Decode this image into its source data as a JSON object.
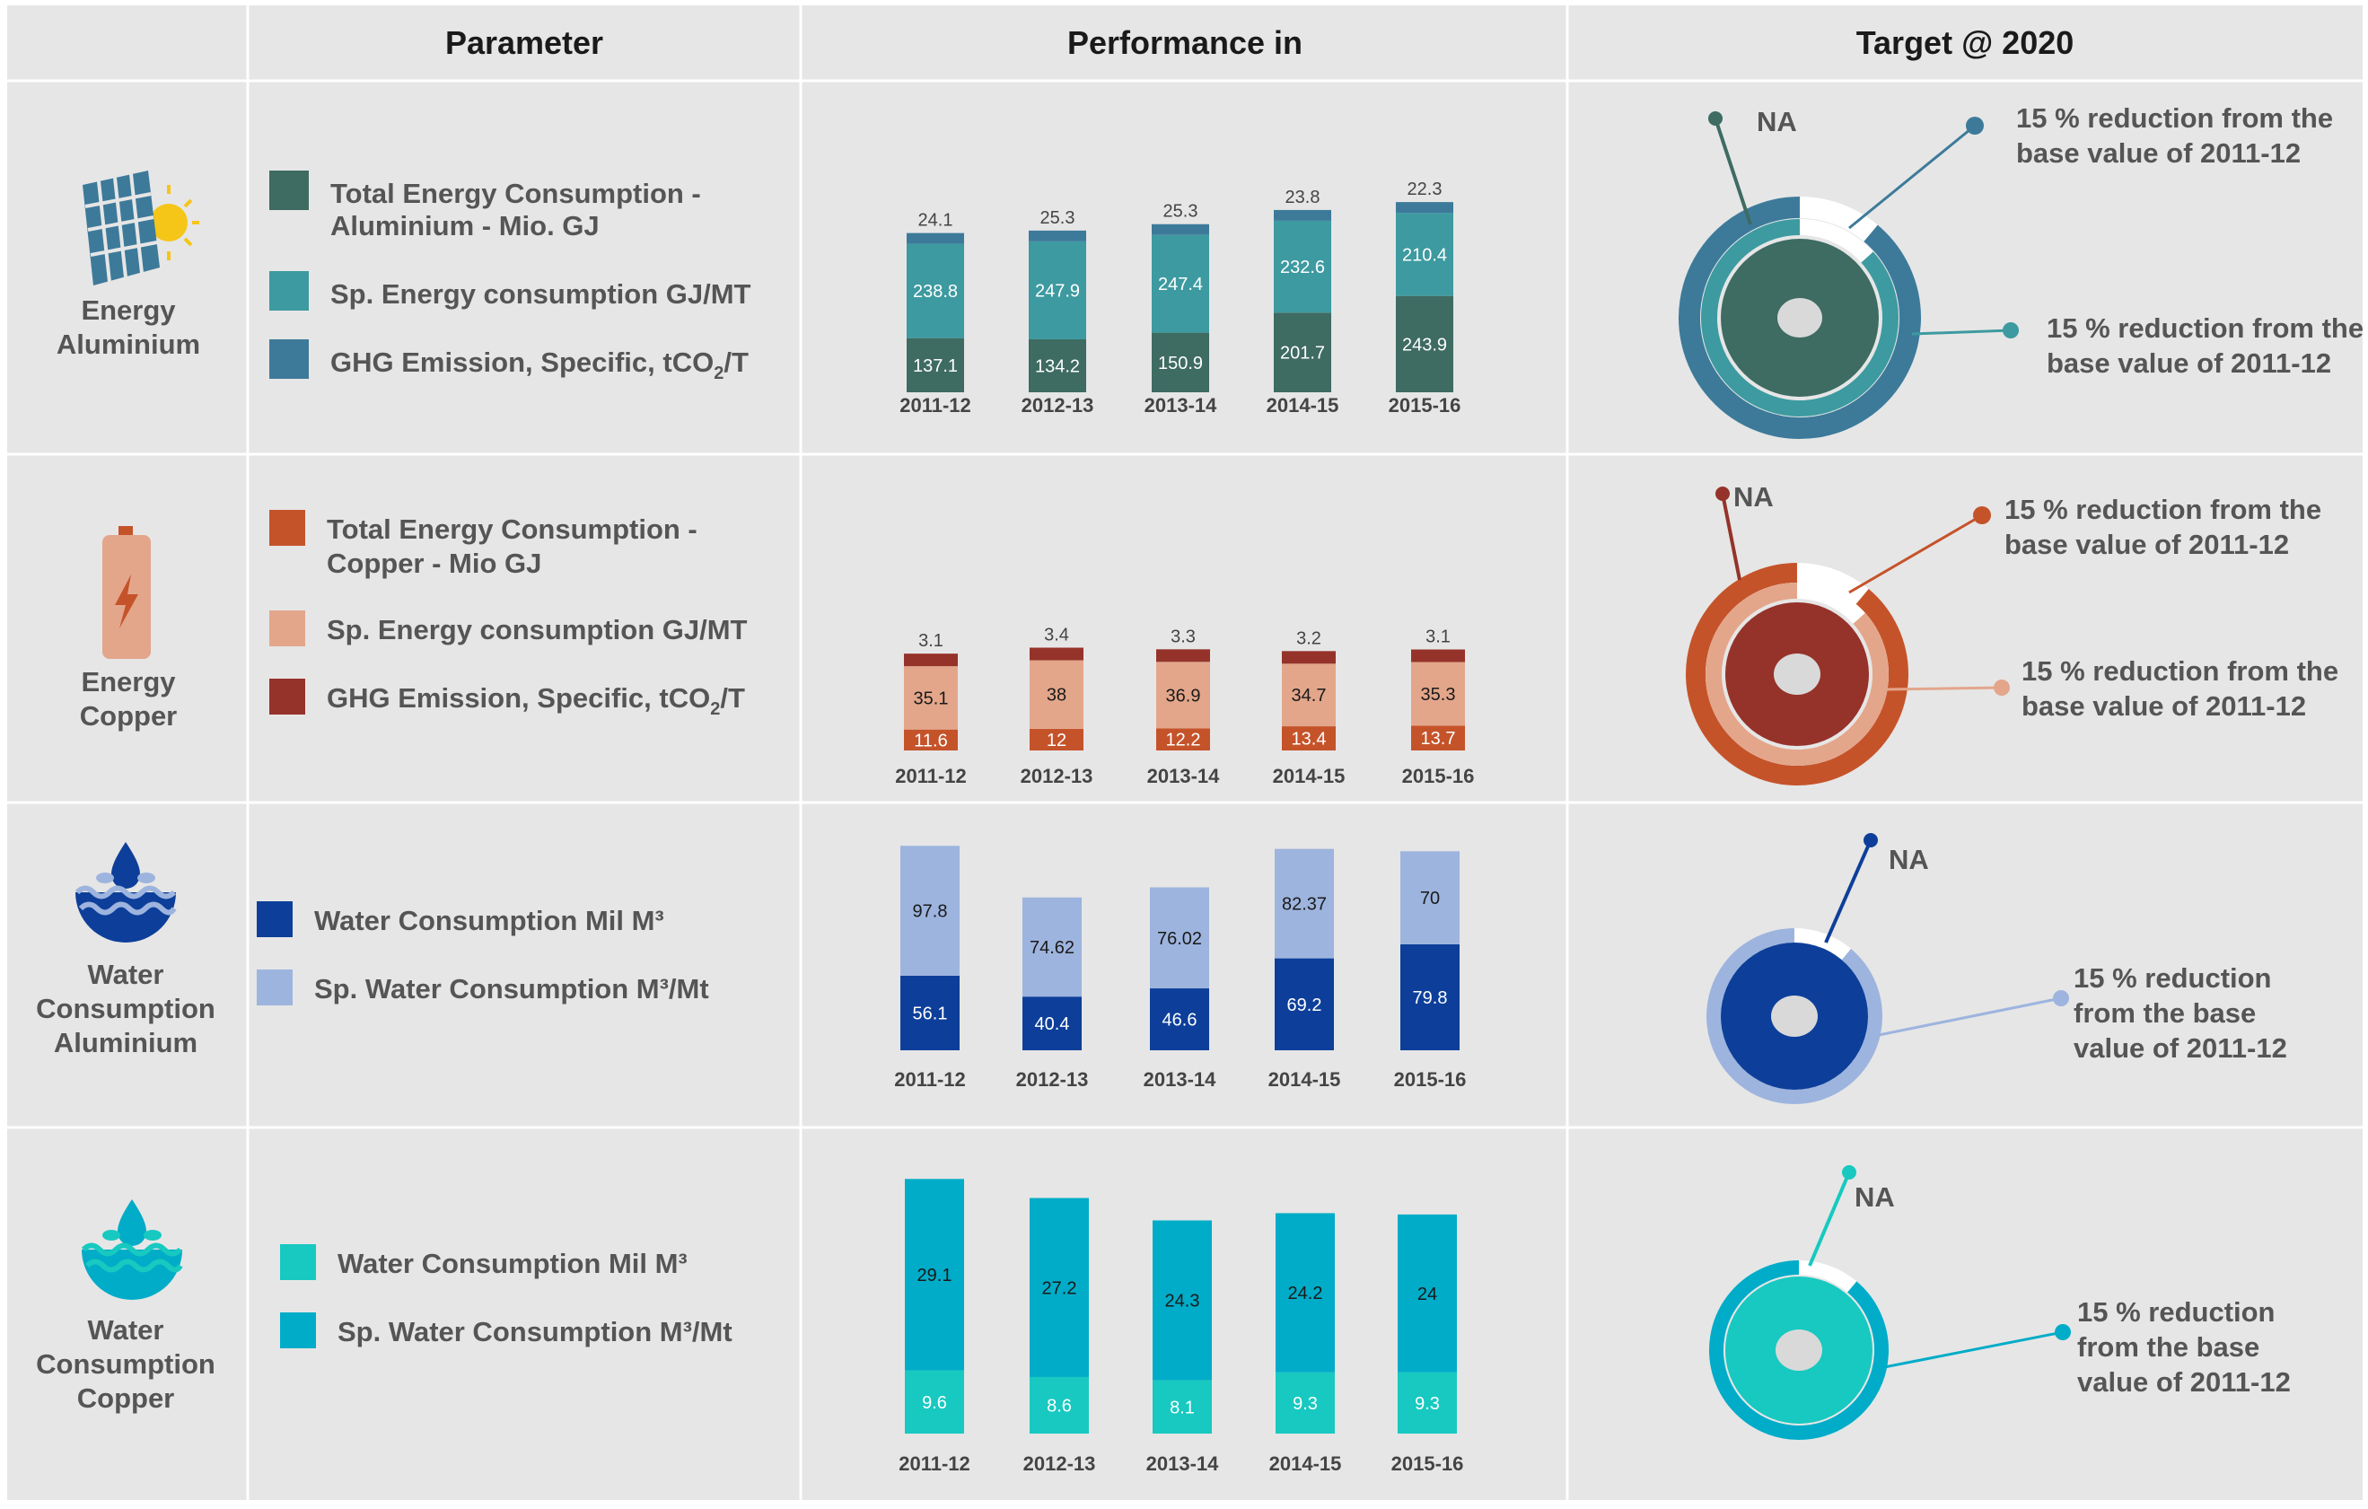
{
  "header": {
    "parameter": "Parameter",
    "performance": "Performance in",
    "target": "Target @ 2020"
  },
  "years": [
    "2011-12",
    "2012-13",
    "2013-14",
    "2014-15",
    "2015-16"
  ],
  "rows": [
    {
      "id": "energy-aluminium",
      "icon": "solar-panel-icon",
      "label_lines": [
        "Energy",
        "Aluminium"
      ],
      "legend": [
        {
          "color": "#3e6b62",
          "lines": [
            "Total Energy Consumption -",
            "Aluminium - Mio. GJ"
          ]
        },
        {
          "color": "#3d9aa0",
          "lines": [
            "Sp. Energy consumption GJ/MT"
          ]
        },
        {
          "color": "#3d7a9a",
          "lines": [
            "GHG Emission, Specific, tCO",
            "2",
            "/T"
          ]
        }
      ],
      "target": {
        "na": "NA",
        "callout_top": [
          "15 % reduction from the",
          "base value of 2011-12"
        ],
        "callout_mid": [
          "15 % reduction from the",
          "base value of 2011-12"
        ]
      }
    },
    {
      "id": "energy-copper",
      "icon": "battery-icon",
      "label_lines": [
        "Energy",
        "Copper"
      ],
      "legend": [
        {
          "color": "#c5532a",
          "lines": [
            "Total Energy Consumption -",
            "Copper - Mio GJ"
          ]
        },
        {
          "color": "#e3a68b",
          "lines": [
            "Sp. Energy consumption GJ/MT"
          ]
        },
        {
          "color": "#95332a",
          "lines": [
            "GHG Emission, Specific, tCO",
            "2",
            "/T"
          ]
        }
      ],
      "target": {
        "na": "NA",
        "callout_top": [
          "15 % reduction from the",
          "base value of 2011-12"
        ],
        "callout_mid": [
          "15 % reduction from the",
          "base value of 2011-12"
        ]
      }
    },
    {
      "id": "water-aluminium",
      "icon": "water-drop-icon",
      "label_lines": [
        "Water",
        "Consumption",
        "Aluminium"
      ],
      "legend": [
        {
          "color": "#0d3f9a",
          "lines": [
            "Water Consumption  Mil M³"
          ]
        },
        {
          "color": "#9db4de",
          "lines": [
            "Sp. Water Consumption M³/Mt"
          ]
        }
      ],
      "target": {
        "na": "NA",
        "callout_mid": [
          "15 % reduction",
          "from the base",
          "value of 2011-12"
        ]
      }
    },
    {
      "id": "water-copper",
      "icon": "water-drop-icon",
      "label_lines": [
        "Water",
        "Consumption",
        "Copper"
      ],
      "legend": [
        {
          "color": "#17c9c0",
          "lines": [
            "Water Consumption  Mil M³"
          ]
        },
        {
          "color": "#00acc8",
          "lines": [
            "Sp. Water Consumption M³/Mt"
          ]
        }
      ],
      "target": {
        "na": "NA",
        "callout_mid": [
          "15 % reduction",
          "from the base",
          "value of 2011-12"
        ]
      }
    }
  ],
  "chart_data": [
    {
      "type": "bar",
      "stacked": true,
      "categories": [
        "2011-12",
        "2012-13",
        "2013-14",
        "2014-15",
        "2015-16"
      ],
      "series": [
        {
          "name": "Total Energy Consumption - Aluminium - Mio. GJ",
          "color": "#3e6b62",
          "values": [
            137.1,
            134.2,
            150.9,
            201.7,
            243.9
          ]
        },
        {
          "name": "Sp. Energy consumption GJ/MT",
          "color": "#3d9aa0",
          "values": [
            238.8,
            247.9,
            247.4,
            232.6,
            210.4
          ]
        },
        {
          "name": "GHG Emission, Specific, tCO2/T",
          "color": "#3d7a9a",
          "values": [
            24.1,
            25.3,
            25.3,
            23.8,
            22.3
          ]
        }
      ]
    },
    {
      "type": "bar",
      "stacked": true,
      "categories": [
        "2011-12",
        "2012-13",
        "2013-14",
        "2014-15",
        "2015-16"
      ],
      "series": [
        {
          "name": "Total Energy Consumption - Copper - Mio GJ",
          "color": "#c5532a",
          "values": [
            11.6,
            12.0,
            12.2,
            13.4,
            13.7
          ]
        },
        {
          "name": "Sp. Energy consumption GJ/MT",
          "color": "#e3a68b",
          "values": [
            35.1,
            38.0,
            36.9,
            34.7,
            35.3
          ]
        },
        {
          "name": "GHG Emission, Specific, tCO2/T",
          "color": "#95332a",
          "values": [
            3.1,
            3.4,
            3.3,
            3.2,
            3.1
          ]
        }
      ]
    },
    {
      "type": "bar",
      "stacked": true,
      "categories": [
        "2011-12",
        "2012-13",
        "2013-14",
        "2014-15",
        "2015-16"
      ],
      "series": [
        {
          "name": "Water Consumption  Mil M³",
          "color": "#0d3f9a",
          "values": [
            56.1,
            40.4,
            46.6,
            69.2,
            79.8
          ]
        },
        {
          "name": "Sp. Water Consumption M³/Mt",
          "color": "#9db4de",
          "values": [
            97.8,
            74.62,
            76.02,
            82.37,
            70
          ]
        }
      ]
    },
    {
      "type": "bar",
      "stacked": true,
      "categories": [
        "2011-12",
        "2012-13",
        "2013-14",
        "2014-15",
        "2015-16"
      ],
      "series": [
        {
          "name": "Water Consumption  Mil M³",
          "color": "#17c9c0",
          "values": [
            9.6,
            8.6,
            8.1,
            9.3,
            9.3
          ]
        },
        {
          "name": "Sp. Water Consumption M³/Mt",
          "color": "#00acc8",
          "values": [
            29.1,
            27.2,
            24.3,
            24.2,
            24
          ]
        }
      ]
    }
  ]
}
